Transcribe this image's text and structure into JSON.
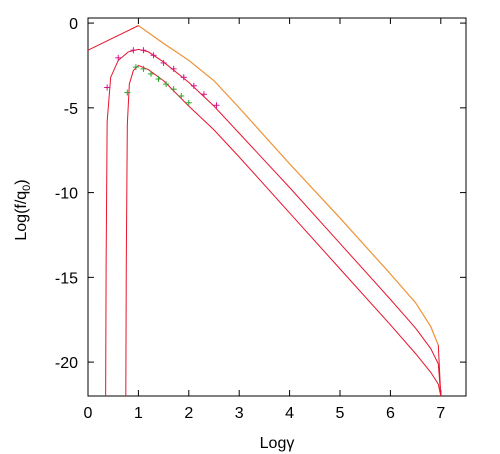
{
  "chart_data": {
    "type": "line",
    "title": "",
    "xlabel": "Logγ",
    "ylabel": "Log(f/q₀)",
    "ylabel_main": "Log(f/q",
    "ylabel_sub": "0",
    "ylabel_close": ")",
    "xlim": [
      0,
      7.5
    ],
    "ylim": [
      -22,
      0.3
    ],
    "xticks": [
      0,
      1,
      2,
      3,
      4,
      5,
      6,
      7
    ],
    "yticks": [
      0,
      -5,
      -10,
      -15,
      -20
    ],
    "grid": false,
    "legend": "none",
    "series": [
      {
        "color": "#e8142c",
        "x": [
          0,
          1.0,
          1.5,
          2.0,
          2.5,
          3.0,
          4.0,
          5.0,
          6.0,
          6.5,
          6.8,
          6.95,
          7.0
        ],
        "y": [
          -1.6,
          -0.15,
          -1.2,
          -2.2,
          -3.4,
          -5.0,
          -8.3,
          -11.5,
          -14.8,
          -16.5,
          -17.9,
          -19.0,
          -22
        ]
      },
      {
        "color": "#e8142c",
        "x": [
          0.35,
          0.36,
          0.38,
          0.45,
          0.6,
          0.8,
          1.0,
          1.2,
          1.5,
          2.0,
          2.5,
          3.0,
          4.0,
          5.0,
          6.0,
          6.5,
          6.8,
          6.95,
          7.0
        ],
        "y": [
          -22,
          -14,
          -5.8,
          -3.2,
          -2.2,
          -1.7,
          -1.55,
          -1.7,
          -2.3,
          -3.5,
          -4.9,
          -6.5,
          -9.7,
          -13.0,
          -16.3,
          -18.0,
          -19.2,
          -20.1,
          -22
        ]
      },
      {
        "color": "#e8142c",
        "x": [
          0.75,
          0.76,
          0.78,
          0.82,
          0.9,
          1.0,
          1.2,
          1.5,
          2.0,
          2.5,
          3.0,
          4.0,
          5.0,
          6.0,
          6.5,
          6.8,
          6.95,
          7.0
        ],
        "y": [
          -22,
          -14,
          -6.0,
          -3.6,
          -2.8,
          -2.5,
          -2.75,
          -3.4,
          -4.9,
          -6.3,
          -7.9,
          -11.2,
          -14.5,
          -17.8,
          -19.5,
          -20.6,
          -21.3,
          -22
        ]
      },
      {
        "color": "#f0a030",
        "x": [
          1.0,
          1.5,
          2.0,
          2.5,
          3.0,
          4.0,
          5.0,
          6.0,
          6.5,
          6.8,
          6.95
        ],
        "y": [
          -0.15,
          -1.2,
          -2.2,
          -3.4,
          -5.0,
          -8.3,
          -11.5,
          -14.8,
          -16.5,
          -17.9,
          -19.0
        ]
      }
    ],
    "markers": [
      {
        "color": "#d4148c",
        "x": [
          0.38,
          0.6,
          0.9,
          1.1,
          1.3,
          1.5,
          1.7,
          1.9,
          2.1,
          2.3,
          2.55
        ],
        "y": [
          -3.8,
          -2.05,
          -1.6,
          -1.6,
          -1.9,
          -2.35,
          -2.7,
          -3.2,
          -3.7,
          -4.2,
          -4.85
        ]
      },
      {
        "color": "#2aa52a",
        "x": [
          0.78,
          0.95,
          1.1,
          1.25,
          1.4,
          1.55,
          1.7,
          1.85,
          2.0
        ],
        "y": [
          -4.1,
          -2.6,
          -2.7,
          -3.0,
          -3.3,
          -3.6,
          -3.9,
          -4.3,
          -4.7
        ]
      }
    ]
  }
}
